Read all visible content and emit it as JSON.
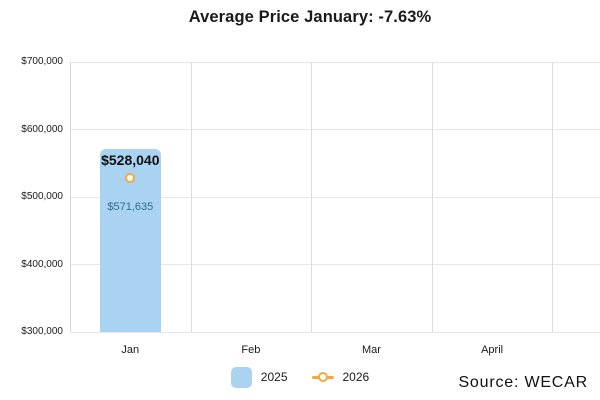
{
  "title": "Average Price January: -7.63%",
  "source_label": "Source: WECAR",
  "colors": {
    "bar_2025": "#a9d3f0",
    "line_2026": "#f5a83c",
    "bar_inner_label": "#2f6d8c",
    "gridline": "#e7e7e7",
    "text": "#1a1a1a"
  },
  "legend": {
    "items": [
      {
        "label": "2025",
        "swatch": "bar-square",
        "color": "#a9d3f0"
      },
      {
        "label": "2026",
        "swatch": "line-marker",
        "color": "#f5a83c"
      }
    ]
  },
  "chart_data": {
    "type": "bar",
    "title": "Average Price January: -7.63%",
    "categories": [
      "Jan",
      "Feb",
      "Mar",
      "April"
    ],
    "series": [
      {
        "name": "2025",
        "chart_type": "bar",
        "color": "#a9d3f0",
        "values": [
          571635,
          null,
          null,
          null
        ],
        "value_labels": [
          "$571,635",
          null,
          null,
          null
        ]
      },
      {
        "name": "2026",
        "chart_type": "line",
        "marker": "hollow-circle",
        "color": "#f5a83c",
        "values": [
          528040,
          null,
          null,
          null
        ],
        "value_labels": [
          "$528,040",
          null,
          null,
          null
        ]
      }
    ],
    "xlabel": "",
    "ylabel": "",
    "ylim": [
      300000,
      700000
    ],
    "yticks": [
      {
        "value": 700000,
        "label": "$700,000"
      },
      {
        "value": 600000,
        "label": "$600,000"
      },
      {
        "value": 500000,
        "label": "$500,000"
      },
      {
        "value": 400000,
        "label": "$400,000"
      },
      {
        "value": 300000,
        "label": "$300,000"
      }
    ],
    "grid": true,
    "legend_position": "bottom"
  }
}
